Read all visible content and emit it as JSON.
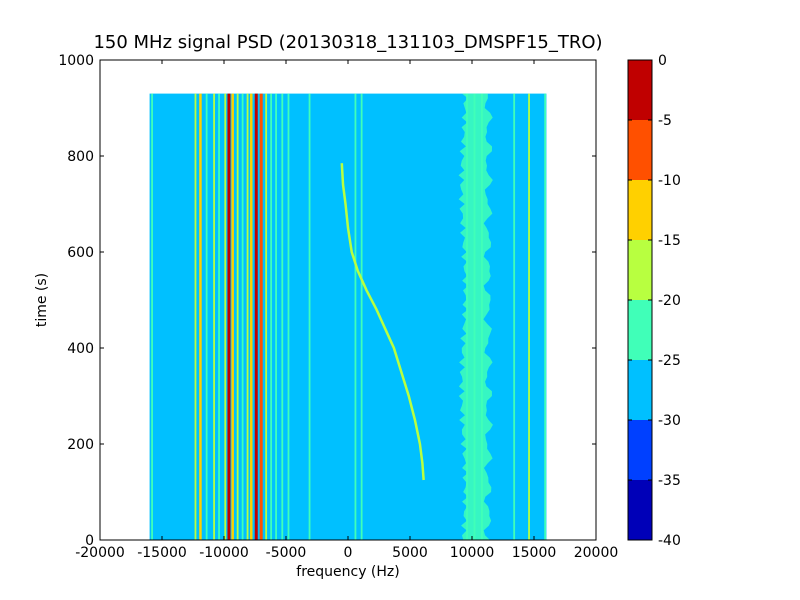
{
  "chart_data": {
    "type": "heatmap",
    "title": "150 MHz signal PSD (20130318_131103_DMSPF15_TRO)",
    "xlabel": "frequency (Hz)",
    "ylabel": "time (s)",
    "xlim": [
      -20000,
      20000
    ],
    "ylim": [
      0,
      1000
    ],
    "xticks": [
      -20000,
      -15000,
      -10000,
      -5000,
      0,
      5000,
      10000,
      15000,
      20000
    ],
    "yticks": [
      0,
      200,
      400,
      600,
      800,
      1000
    ],
    "data_extent": {
      "x": [
        -16000,
        16000
      ],
      "y": [
        0,
        930
      ]
    },
    "colorbar": {
      "levels": [
        -40,
        -35,
        -30,
        -25,
        -20,
        -15,
        -10,
        -5,
        0
      ],
      "colors": [
        "#0000b8",
        "#0040ff",
        "#00c0ff",
        "#40ffb8",
        "#b8ff40",
        "#ffd000",
        "#ff5000",
        "#c00000"
      ],
      "ticks": [
        0,
        -5,
        -10,
        -15,
        -20,
        -25,
        -30,
        -35,
        -40
      ]
    },
    "background_level_color": "#00c0ff",
    "features": {
      "vertical_lines": [
        {
          "x": -15800,
          "y": [
            0,
            930
          ],
          "level": "#40ffb8"
        },
        {
          "x": -12300,
          "y": [
            0,
            930
          ],
          "level": "#b8ff40"
        },
        {
          "x": -11900,
          "y": [
            0,
            930
          ],
          "level": "#ffd000"
        },
        {
          "x": -11400,
          "y": [
            0,
            930
          ],
          "level": "#40ffb8"
        },
        {
          "x": -10800,
          "y": [
            0,
            930
          ],
          "level": "#b8ff40"
        },
        {
          "x": -10400,
          "y": [
            0,
            930
          ],
          "level": "#40ffb8"
        },
        {
          "x": -9900,
          "y": [
            0,
            930
          ],
          "level": "#b8ff40"
        },
        {
          "x": -9600,
          "y": [
            0,
            930
          ],
          "level": "#c00000"
        },
        {
          "x": -9300,
          "y": [
            0,
            930
          ],
          "level": "#ffd000"
        },
        {
          "x": -8900,
          "y": [
            0,
            930
          ],
          "level": "#b8ff40"
        },
        {
          "x": -8500,
          "y": [
            0,
            930
          ],
          "level": "#40ffb8"
        },
        {
          "x": -8100,
          "y": [
            0,
            930
          ],
          "level": "#b8ff40"
        },
        {
          "x": -7800,
          "y": [
            0,
            930
          ],
          "level": "#ffd000"
        },
        {
          "x": -7400,
          "y": [
            0,
            930
          ],
          "level": "#c00000"
        },
        {
          "x": -7000,
          "y": [
            0,
            930
          ],
          "level": "#ff5000"
        },
        {
          "x": -6600,
          "y": [
            0,
            930
          ],
          "level": "#b8ff40"
        },
        {
          "x": -6200,
          "y": [
            0,
            930
          ],
          "level": "#40ffb8"
        },
        {
          "x": -5800,
          "y": [
            0,
            930
          ],
          "level": "#40ffb8"
        },
        {
          "x": -5300,
          "y": [
            0,
            930
          ],
          "level": "#40ffb8"
        },
        {
          "x": -4800,
          "y": [
            0,
            930
          ],
          "level": "#40ffb8"
        },
        {
          "x": -3100,
          "y": [
            0,
            930
          ],
          "level": "#40ffb8"
        },
        {
          "x": 600,
          "y": [
            0,
            930
          ],
          "level": "#40ffb8"
        },
        {
          "x": 1100,
          "y": [
            0,
            930
          ],
          "level": "#40ffb8"
        },
        {
          "x": 9600,
          "y": [
            0,
            930
          ],
          "level": "#40ffb8"
        },
        {
          "x": 10200,
          "y": [
            0,
            930
          ],
          "level": "#40ffb8"
        },
        {
          "x": 10800,
          "y": [
            0,
            930
          ],
          "level": "#40ffb8"
        },
        {
          "x": 13400,
          "y": [
            0,
            930
          ],
          "level": "#40ffb8"
        },
        {
          "x": 14600,
          "y": [
            0,
            930
          ],
          "level": "#b8ff40"
        },
        {
          "x": 15900,
          "y": [
            0,
            930
          ],
          "level": "#40ffb8"
        }
      ],
      "doppler_curve": {
        "level": "#b8ff40",
        "points": [
          [
            -500,
            785
          ],
          [
            -400,
            740
          ],
          [
            -200,
            700
          ],
          [
            0,
            650
          ],
          [
            300,
            600
          ],
          [
            800,
            560
          ],
          [
            1500,
            520
          ],
          [
            2300,
            480
          ],
          [
            3000,
            440
          ],
          [
            3700,
            400
          ],
          [
            4300,
            350
          ],
          [
            4900,
            300
          ],
          [
            5400,
            250
          ],
          [
            5800,
            200
          ],
          [
            6000,
            160
          ],
          [
            6100,
            125
          ]
        ]
      },
      "noise_band": {
        "x": [
          9300,
          11300
        ],
        "y": [
          0,
          930
        ],
        "level": "#40ffb8"
      }
    }
  }
}
